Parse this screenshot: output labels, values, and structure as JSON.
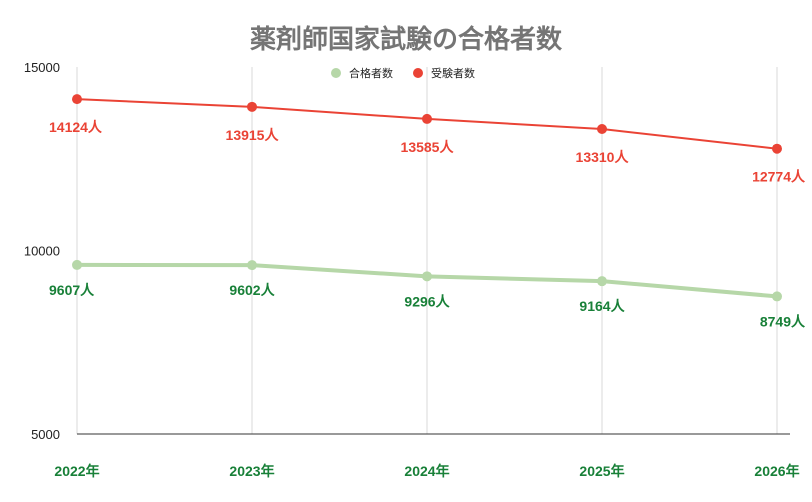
{
  "chart_data": {
    "type": "line",
    "title": "薬剤師国家試験の合格者数",
    "categories": [
      "2022年",
      "2023年",
      "2024年",
      "2025年",
      "2026年"
    ],
    "series": [
      {
        "name": "合格者数",
        "color": "#b6d7a8",
        "label_color": "#188038",
        "values": [
          9607,
          9602,
          9296,
          9164,
          8749
        ]
      },
      {
        "name": "受験者数",
        "color": "#ea4335",
        "label_color": "#ea4335",
        "values": [
          14124,
          13915,
          13585,
          13310,
          12774
        ]
      }
    ],
    "data_label_suffix": "人",
    "ylim": [
      5000,
      15000
    ],
    "yticks": [
      "5000",
      "10000",
      "15000"
    ],
    "xtick_color": "#188038",
    "title_color": "#757575",
    "grid": "vertical",
    "legend_position": "top"
  }
}
